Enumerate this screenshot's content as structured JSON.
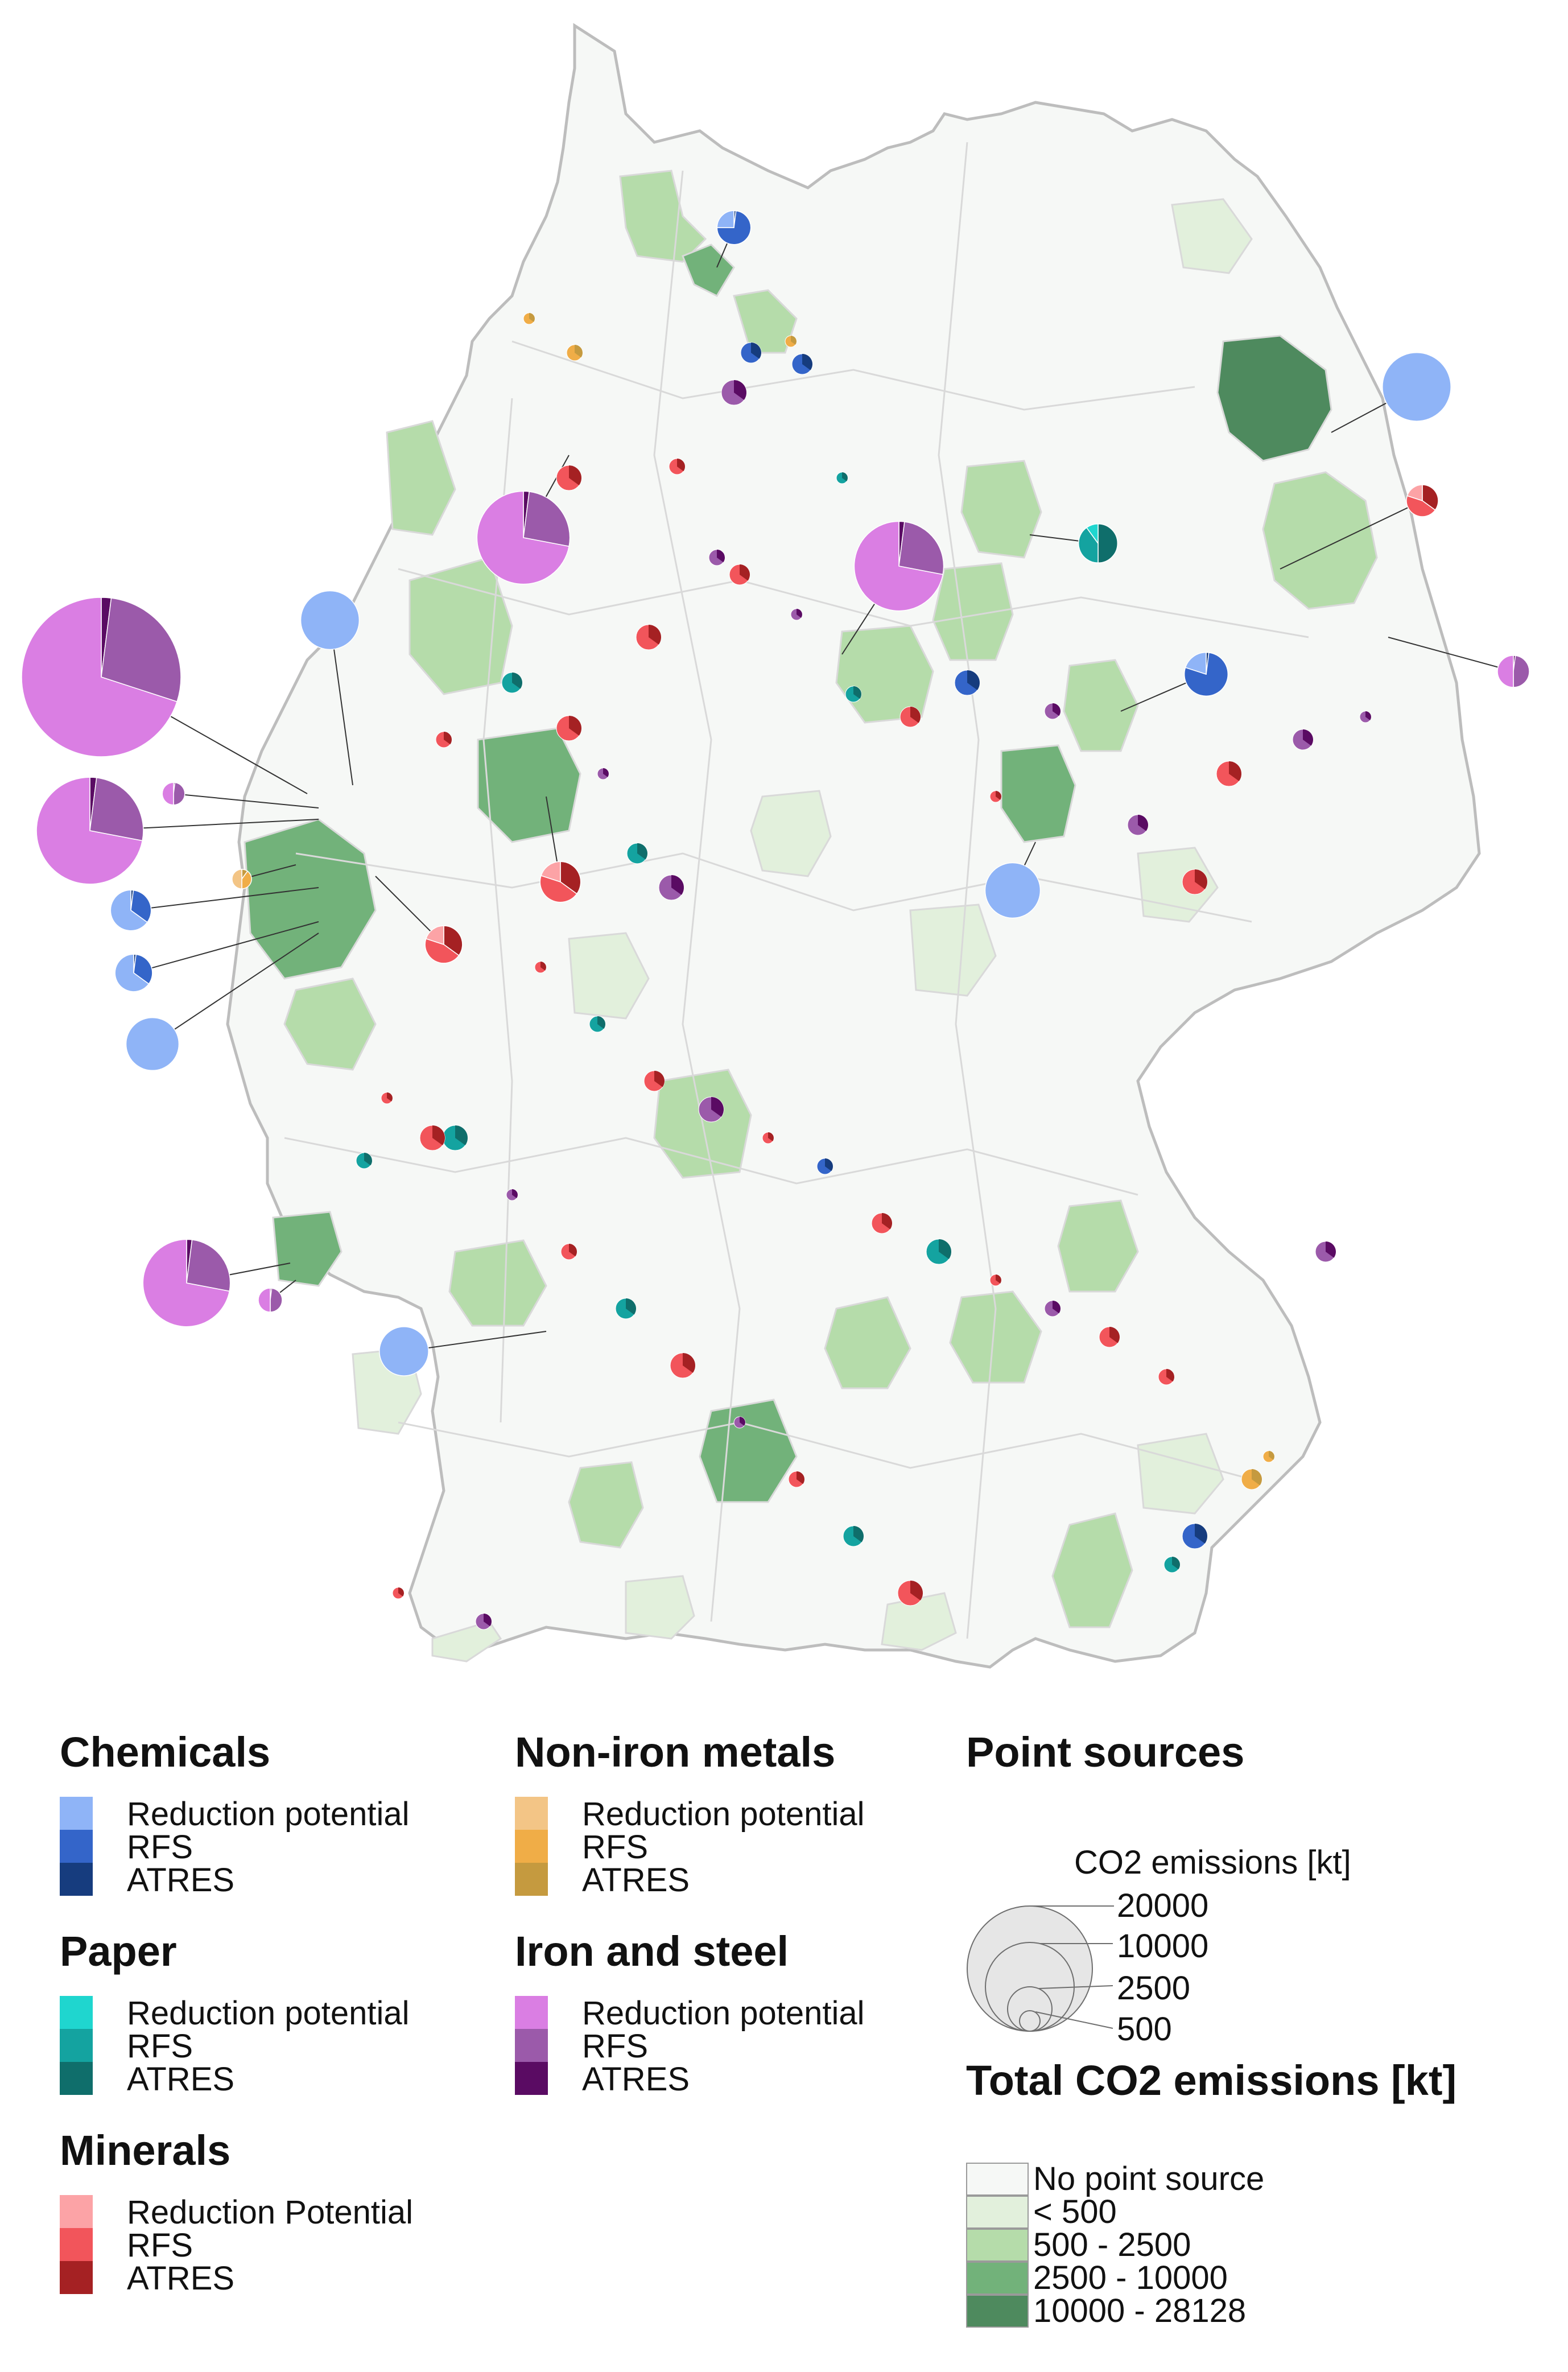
{
  "map": {
    "colors": {
      "ocean": "#ffffff",
      "land_border": "#c9c9c9",
      "district_border": "#d9d9d9",
      "outer_border": "#bdbdbd"
    },
    "emission_classes": [
      {
        "label": "No point source",
        "color": "#f6f8f6"
      },
      {
        "label": "< 500",
        "color": "#e2f0dc"
      },
      {
        "label": "500 - 2500",
        "color": "#b5dcaa"
      },
      {
        "label": "2500 - 10000",
        "color": "#72b27a"
      },
      {
        "label": "10000 - 28128",
        "color": "#4e8a5e"
      }
    ],
    "sectors": {
      "chemicals": {
        "name": "Chemicals",
        "colors": [
          "#8fb4f7",
          "#3465c9",
          "#163c7e"
        ]
      },
      "paper": {
        "name": "Paper",
        "colors": [
          "#1fd6cf",
          "#14a3a0",
          "#0f6e6b"
        ]
      },
      "minerals": {
        "name": "Minerals",
        "colors": [
          "#fca3a6",
          "#f2555b",
          "#a52123"
        ]
      },
      "nonferrous": {
        "name": "Non-iron metals",
        "colors": [
          "#f3c586",
          "#f0ad47",
          "#c59a3f"
        ]
      },
      "steel": {
        "name": "Iron and steel",
        "colors": [
          "#da7ee3",
          "#9b5aaa",
          "#5a0b63"
        ]
      }
    }
  },
  "legend": {
    "chemicals": {
      "title": "Chemicals",
      "items": [
        "Reduction potential",
        "RFS",
        "ATRES"
      ]
    },
    "paper": {
      "title": "Paper",
      "items": [
        "Reduction potential",
        "RFS",
        "ATRES"
      ]
    },
    "minerals": {
      "title": "Minerals",
      "items": [
        "Reduction Potential",
        "RFS",
        "ATRES"
      ]
    },
    "nonferrous": {
      "title": "Non-iron metals",
      "items": [
        "Reduction potential",
        "RFS",
        "ATRES"
      ]
    },
    "steel": {
      "title": "Iron and steel",
      "items": [
        "Reduction potential",
        "RFS",
        "ATRES"
      ]
    },
    "point_sources": {
      "title": "Point sources",
      "subtitle": "CO2 emissions [kt]",
      "sizes": [
        "20000",
        "10000",
        "2500",
        "500"
      ]
    },
    "total": {
      "title": "Total CO2 emissions [kt]",
      "items": [
        "No point source",
        "< 500",
        "500 - 2500",
        "2500 - 10000",
        "10000 - 28128"
      ]
    }
  },
  "point_sources": [
    {
      "sector": "steel",
      "kt": 20000,
      "shares": [
        0.7,
        0.28,
        0.02
      ]
    },
    {
      "sector": "steel",
      "kt": 9000,
      "shares": [
        0.72,
        0.26,
        0.02
      ]
    },
    {
      "sector": "steel",
      "kt": 6800,
      "shares": [
        0.72,
        0.26,
        0.02
      ]
    },
    {
      "sector": "steel",
      "kt": 6300,
      "shares": [
        0.72,
        0.26,
        0.02
      ]
    },
    {
      "sector": "steel",
      "kt": 6000,
      "shares": [
        0.72,
        0.26,
        0.02
      ]
    },
    {
      "sector": "steel",
      "kt": 800,
      "shares": [
        0.5,
        0.48,
        0.02
      ]
    },
    {
      "sector": "steel",
      "kt": 450,
      "shares": [
        0.5,
        0.48,
        0.02
      ]
    },
    {
      "sector": "steel",
      "kt": 400,
      "shares": [
        0.5,
        0.48,
        0.02
      ]
    },
    {
      "sector": "chemicals",
      "kt": 2700,
      "shares": [
        1.0,
        0.0,
        0.0
      ]
    },
    {
      "sector": "chemicals",
      "kt": 3700,
      "shares": [
        1.0,
        0.0,
        0.0
      ]
    },
    {
      "sector": "chemicals",
      "kt": 2400,
      "shares": [
        1.0,
        0.0,
        0.0
      ]
    },
    {
      "sector": "chemicals",
      "kt": 2200,
      "shares": [
        1.0,
        0.0,
        0.0
      ]
    },
    {
      "sector": "chemicals",
      "kt": 1900,
      "shares": [
        1.0,
        0.0,
        0.0
      ]
    },
    {
      "sector": "chemicals",
      "kt": 1500,
      "shares": [
        0.2,
        0.78,
        0.02
      ]
    },
    {
      "sector": "chemicals",
      "kt": 1300,
      "shares": [
        0.65,
        0.33,
        0.02
      ]
    },
    {
      "sector": "chemicals",
      "kt": 1100,
      "shares": [
        0.65,
        0.33,
        0.02
      ]
    },
    {
      "sector": "chemicals",
      "kt": 900,
      "shares": [
        0.25,
        0.73,
        0.02
      ]
    },
    {
      "sector": "minerals",
      "kt": 1300,
      "shares": [
        0.2,
        0.45,
        0.35
      ]
    },
    {
      "sector": "minerals",
      "kt": 1100,
      "shares": [
        0.2,
        0.45,
        0.35
      ]
    },
    {
      "sector": "minerals",
      "kt": 800,
      "shares": [
        0.2,
        0.45,
        0.35
      ]
    },
    {
      "sector": "paper",
      "kt": 1200,
      "shares": [
        0.1,
        0.4,
        0.5
      ]
    },
    {
      "sector": "nonferrous",
      "kt": 300,
      "shares": [
        0.5,
        0.4,
        0.1
      ]
    }
  ]
}
